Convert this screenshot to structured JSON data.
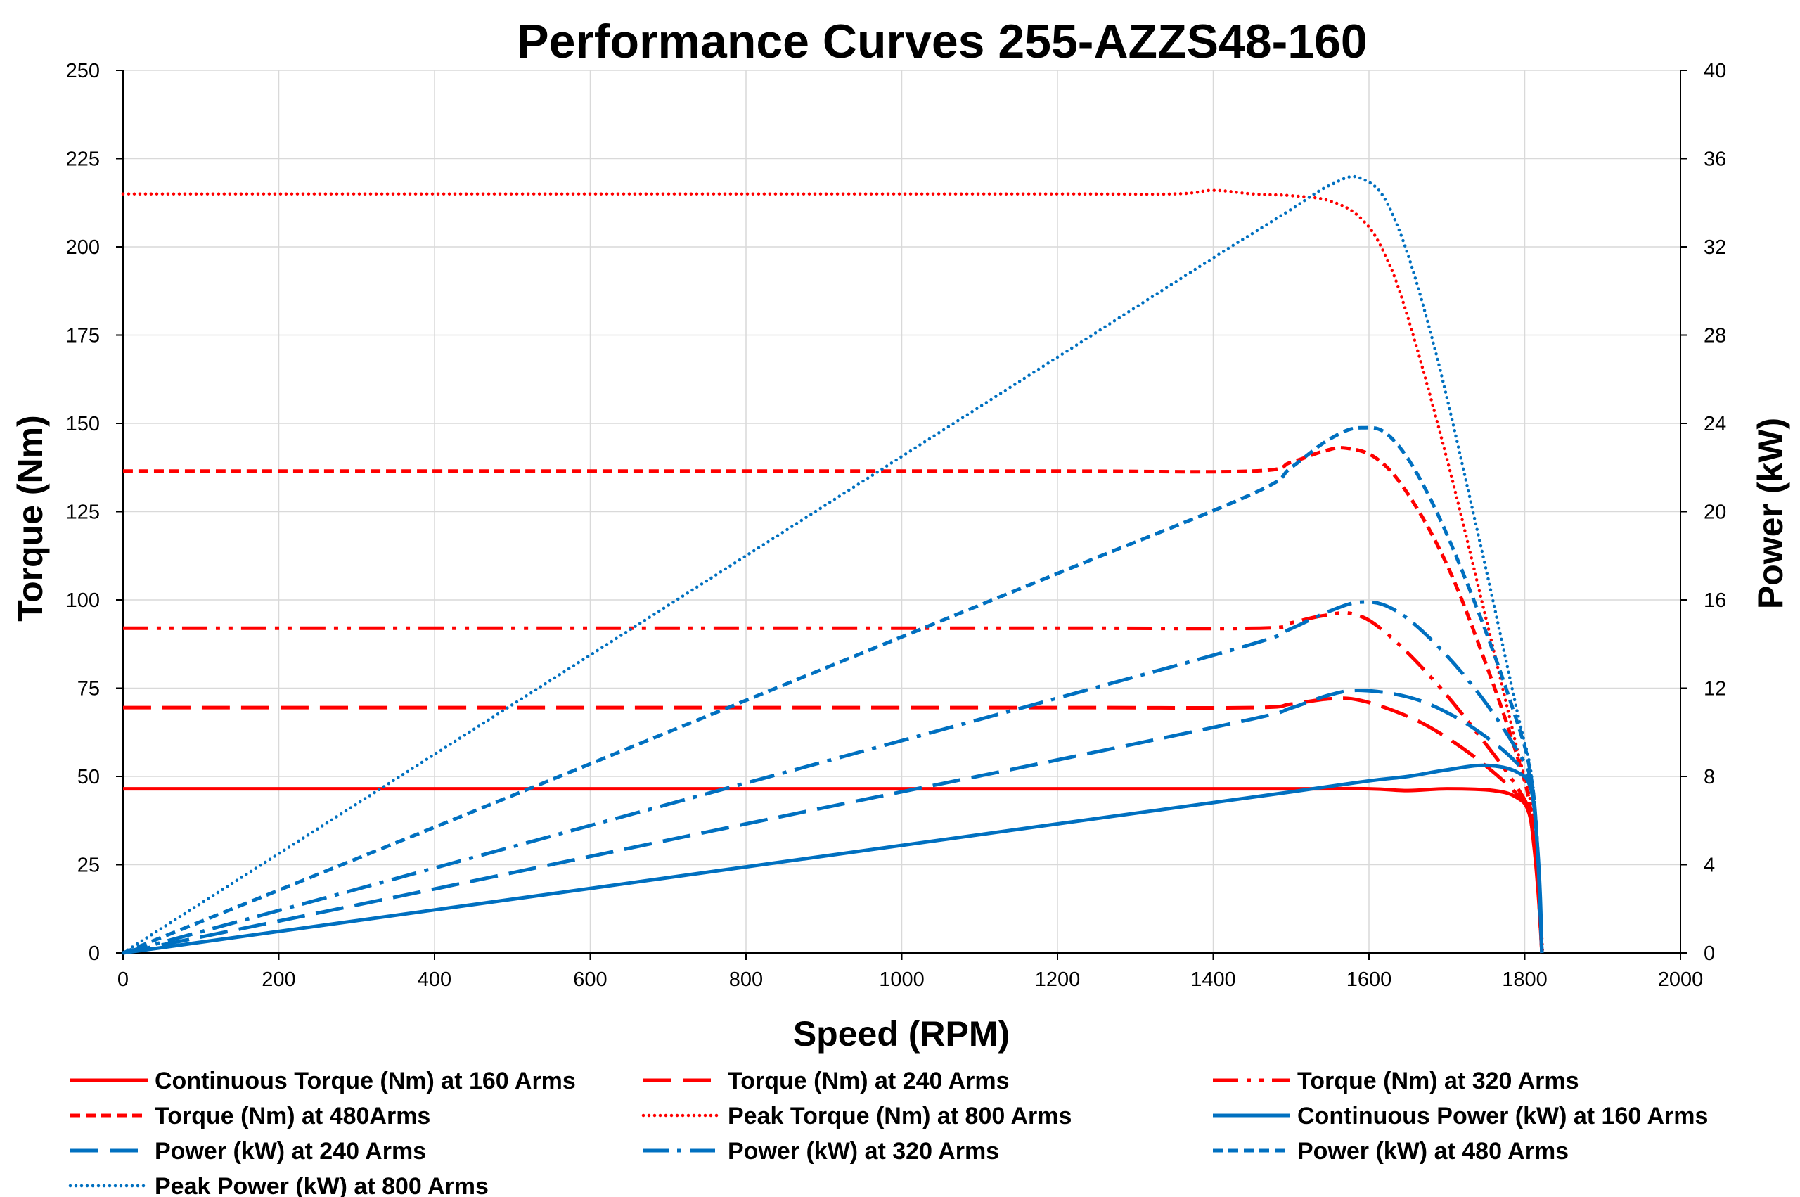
{
  "chart_data": {
    "type": "line",
    "title": "Performance Curves 255-AZZS48-160",
    "xlabel": "Speed (RPM)",
    "ylabel": "Torque (Nm)",
    "y2label": "Power (kW)",
    "xlim": [
      0,
      2000
    ],
    "ylim": [
      0,
      250
    ],
    "y2lim": [
      0,
      40
    ],
    "xticks": [
      0,
      200,
      400,
      600,
      800,
      1000,
      1200,
      1400,
      1600,
      1800,
      2000
    ],
    "yticks": [
      0,
      25,
      50,
      75,
      100,
      125,
      150,
      175,
      200,
      225,
      250
    ],
    "y2ticks": [
      0,
      4,
      8,
      12,
      16,
      20,
      24,
      28,
      32,
      36,
      40
    ],
    "grid": true,
    "legend_position": "bottom",
    "colors": {
      "torque": "#ff0000",
      "power": "#0070c0"
    },
    "series": [
      {
        "name": "Continuous Torque (Nm) at 160 Arms",
        "axis": "left",
        "color": "#ff0000",
        "style": "solid",
        "points": [
          [
            0,
            46.5
          ],
          [
            400,
            46.5
          ],
          [
            800,
            46.5
          ],
          [
            1200,
            46.5
          ],
          [
            1500,
            46.5
          ],
          [
            1600,
            46.5
          ],
          [
            1650,
            46
          ],
          [
            1700,
            46.5
          ],
          [
            1760,
            46
          ],
          [
            1790,
            44
          ],
          [
            1805,
            40
          ],
          [
            1812,
            30
          ],
          [
            1818,
            15
          ],
          [
            1822,
            0
          ]
        ]
      },
      {
        "name": "Torque (Nm) at 240 Arms",
        "axis": "left",
        "color": "#ff0000",
        "style": "longdash",
        "points": [
          [
            0,
            69.5
          ],
          [
            400,
            69.5
          ],
          [
            800,
            69.5
          ],
          [
            1200,
            69.5
          ],
          [
            1450,
            69.5
          ],
          [
            1500,
            70.5
          ],
          [
            1550,
            72
          ],
          [
            1590,
            71.5
          ],
          [
            1650,
            67
          ],
          [
            1700,
            61
          ],
          [
            1750,
            53
          ],
          [
            1790,
            45
          ],
          [
            1805,
            40
          ],
          [
            1815,
            25
          ],
          [
            1822,
            0
          ]
        ]
      },
      {
        "name": "Torque (Nm) at 320 Arms",
        "axis": "left",
        "color": "#ff0000",
        "style": "dashdotdot",
        "points": [
          [
            0,
            92
          ],
          [
            400,
            92
          ],
          [
            800,
            92
          ],
          [
            1200,
            92
          ],
          [
            1460,
            92
          ],
          [
            1500,
            93.5
          ],
          [
            1540,
            95.5
          ],
          [
            1580,
            96
          ],
          [
            1620,
            91
          ],
          [
            1680,
            78
          ],
          [
            1740,
            62
          ],
          [
            1790,
            47
          ],
          [
            1808,
            38
          ],
          [
            1816,
            22
          ],
          [
            1822,
            0
          ]
        ]
      },
      {
        "name": "Torque (Nm) at 480Arms",
        "axis": "left",
        "color": "#ff0000",
        "style": "shortdash",
        "points": [
          [
            0,
            136.5
          ],
          [
            400,
            136.5
          ],
          [
            800,
            136.5
          ],
          [
            1200,
            136.5
          ],
          [
            1450,
            136.5
          ],
          [
            1500,
            139
          ],
          [
            1540,
            142
          ],
          [
            1570,
            143
          ],
          [
            1610,
            140
          ],
          [
            1650,
            130
          ],
          [
            1700,
            110
          ],
          [
            1750,
            82
          ],
          [
            1790,
            56
          ],
          [
            1808,
            40
          ],
          [
            1818,
            18
          ],
          [
            1822,
            0
          ]
        ]
      },
      {
        "name": "Peak Torque (Nm) at 800  Arms",
        "axis": "left",
        "color": "#ff0000",
        "style": "dotted",
        "points": [
          [
            0,
            215
          ],
          [
            400,
            215
          ],
          [
            800,
            215
          ],
          [
            1200,
            215
          ],
          [
            1350,
            215
          ],
          [
            1400,
            216
          ],
          [
            1450,
            215
          ],
          [
            1500,
            214.5
          ],
          [
            1550,
            213
          ],
          [
            1590,
            208
          ],
          [
            1620,
            198
          ],
          [
            1650,
            180
          ],
          [
            1700,
            140
          ],
          [
            1750,
            95
          ],
          [
            1790,
            58
          ],
          [
            1808,
            42
          ],
          [
            1818,
            20
          ],
          [
            1823,
            0
          ]
        ]
      },
      {
        "name": "Continuous Power (kW) at 160 Arms",
        "axis": "right",
        "color": "#0070c0",
        "style": "solid",
        "points": [
          [
            0,
            0
          ],
          [
            400,
            1.95
          ],
          [
            800,
            3.9
          ],
          [
            1200,
            5.85
          ],
          [
            1500,
            7.3
          ],
          [
            1600,
            7.8
          ],
          [
            1650,
            8.0
          ],
          [
            1700,
            8.3
          ],
          [
            1750,
            8.5
          ],
          [
            1790,
            8.2
          ],
          [
            1808,
            7.4
          ],
          [
            1816,
            5.0
          ],
          [
            1820,
            2.5
          ],
          [
            1822,
            0
          ]
        ]
      },
      {
        "name": "Power (kW) at 240 Arms",
        "axis": "right",
        "color": "#0070c0",
        "style": "longdash",
        "points": [
          [
            0,
            0
          ],
          [
            400,
            2.9
          ],
          [
            800,
            5.85
          ],
          [
            1200,
            8.75
          ],
          [
            1450,
            10.6
          ],
          [
            1500,
            11.1
          ],
          [
            1550,
            11.7
          ],
          [
            1590,
            11.9
          ],
          [
            1650,
            11.6
          ],
          [
            1700,
            10.9
          ],
          [
            1750,
            9.8
          ],
          [
            1790,
            8.6
          ],
          [
            1808,
            7.6
          ],
          [
            1816,
            5.0
          ],
          [
            1822,
            0
          ]
        ]
      },
      {
        "name": "Power (kW) at 320 Arms",
        "axis": "right",
        "color": "#0070c0",
        "style": "dashdot",
        "points": [
          [
            0,
            0
          ],
          [
            400,
            3.85
          ],
          [
            800,
            7.7
          ],
          [
            1200,
            11.55
          ],
          [
            1450,
            14.0
          ],
          [
            1500,
            14.7
          ],
          [
            1550,
            15.5
          ],
          [
            1590,
            15.9
          ],
          [
            1630,
            15.6
          ],
          [
            1680,
            14.2
          ],
          [
            1740,
            11.8
          ],
          [
            1790,
            9.2
          ],
          [
            1808,
            7.8
          ],
          [
            1816,
            5.0
          ],
          [
            1822,
            0
          ]
        ]
      },
      {
        "name": "Power (kW) at 480 Arms",
        "axis": "right",
        "color": "#0070c0",
        "style": "shortdash",
        "points": [
          [
            0,
            0
          ],
          [
            400,
            5.7
          ],
          [
            800,
            11.45
          ],
          [
            1200,
            17.2
          ],
          [
            1450,
            20.8
          ],
          [
            1500,
            22.0
          ],
          [
            1550,
            23.3
          ],
          [
            1590,
            23.8
          ],
          [
            1630,
            23.3
          ],
          [
            1680,
            20.5
          ],
          [
            1740,
            15.5
          ],
          [
            1790,
            10.5
          ],
          [
            1808,
            8.0
          ],
          [
            1816,
            5.0
          ],
          [
            1822,
            0
          ]
        ]
      },
      {
        "name": "Peak Power (kW) at 800 Arms",
        "axis": "right",
        "color": "#0070c0",
        "style": "dotted",
        "points": [
          [
            0,
            0
          ],
          [
            400,
            9.0
          ],
          [
            800,
            18.0
          ],
          [
            1200,
            27.0
          ],
          [
            1400,
            31.5
          ],
          [
            1450,
            32.6
          ],
          [
            1500,
            33.7
          ],
          [
            1550,
            34.8
          ],
          [
            1590,
            35.1
          ],
          [
            1630,
            33.5
          ],
          [
            1680,
            28.0
          ],
          [
            1740,
            19.0
          ],
          [
            1790,
            11.0
          ],
          [
            1808,
            8.2
          ],
          [
            1816,
            5.0
          ],
          [
            1822,
            0
          ]
        ]
      }
    ]
  }
}
